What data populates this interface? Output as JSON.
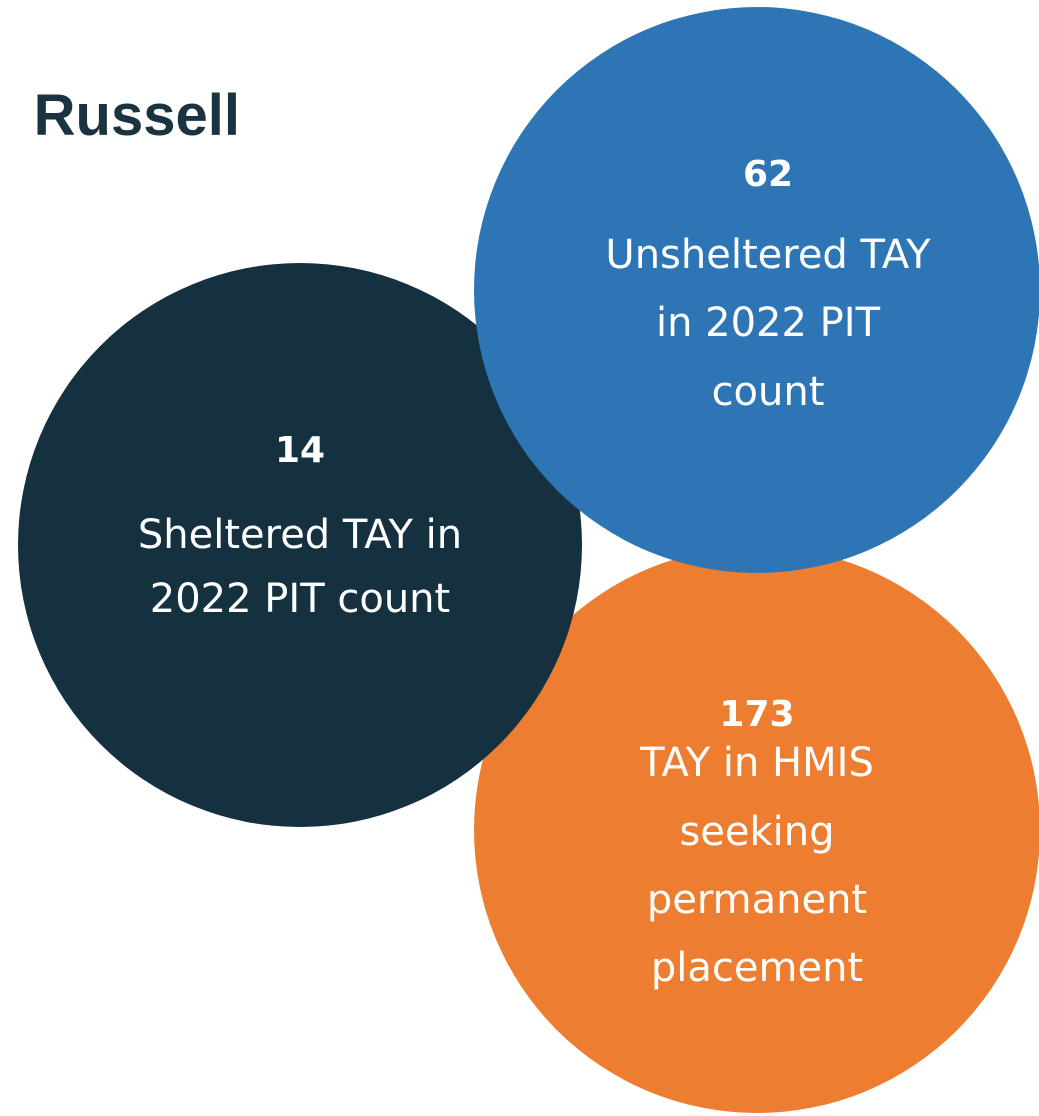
{
  "title": "Russell",
  "stats": [
    {
      "value": 14,
      "lines": [
        "Sheltered TAY in",
        "2022 PIT count"
      ]
    },
    {
      "value": 62,
      "lines": [
        "Unsheltered TAY",
        "in 2022 PIT",
        "count"
      ]
    },
    {
      "value": 173,
      "lines": [
        "TAY in HMIS",
        "seeking",
        "permanent",
        "placement"
      ]
    }
  ]
}
